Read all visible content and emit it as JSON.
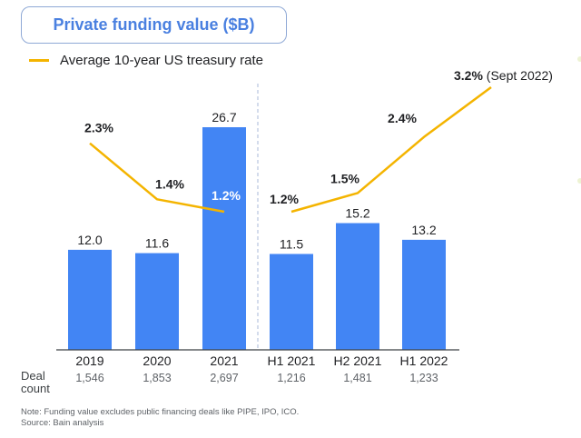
{
  "title": "Private funding value ($B)",
  "legend": {
    "line_label": "Average 10-year US treasury rate",
    "line_color": "#F4B400"
  },
  "deal_count_label": [
    "Deal",
    "count"
  ],
  "note": "Note: Funding value excludes public financing deals like PIPE, IPO, ICO.",
  "source": "Source: Bain analysis",
  "chart_data": {
    "type": "bar",
    "title": "Private funding value ($B)",
    "xlabel": "",
    "ylabel": "",
    "ylim": [
      0,
      27
    ],
    "grid": false,
    "legend_position": "top-left",
    "categories": [
      "2019",
      "2020",
      "2021",
      "H1 2021",
      "H2 2021",
      "H1 2022"
    ],
    "series": [
      {
        "name": "Private funding value ($B)",
        "type": "bar",
        "color": "#4285F4",
        "values": [
          12.0,
          11.6,
          26.7,
          11.5,
          15.2,
          13.2
        ],
        "labels": [
          "12.0",
          "11.6",
          "26.7",
          "11.5",
          "15.2",
          "13.2"
        ]
      },
      {
        "name": "Average 10-year US treasury rate",
        "type": "line",
        "color": "#F4B400",
        "segments": [
          {
            "categories": [
              "2019",
              "2020",
              "2021"
            ],
            "values": [
              2.3,
              1.4,
              1.2
            ],
            "labels": [
              "2.3%",
              "1.4%",
              "1.2%"
            ]
          },
          {
            "categories": [
              "H1 2021",
              "H2 2021",
              "H1 2022",
              "Sept 2022"
            ],
            "values": [
              1.2,
              1.5,
              2.4,
              3.2
            ],
            "labels": [
              "1.2%",
              "1.5%",
              "2.4%",
              "3.2%"
            ]
          }
        ],
        "annotation": {
          "value_label": "3.2%",
          "suffix": " (Sept 2022)"
        }
      }
    ],
    "deal_counts": [
      "1,546",
      "1,853",
      "2,697",
      "1,216",
      "1,481",
      "1,233"
    ],
    "divider_after_category": "2021"
  }
}
